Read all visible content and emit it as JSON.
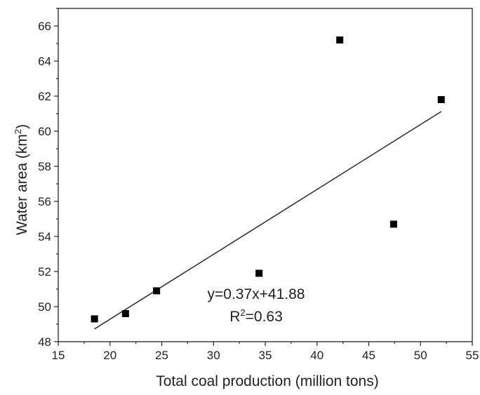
{
  "chart_data": {
    "type": "scatter",
    "title": "",
    "xlabel": "Total coal production (million tons)",
    "ylabel_main": "Water area (km",
    "ylabel_sup": "2",
    "ylabel_close": ")",
    "xlim": [
      15,
      55
    ],
    "ylim": [
      48,
      67
    ],
    "xticks": [
      15,
      20,
      25,
      30,
      35,
      40,
      45,
      50,
      55
    ],
    "yticks": [
      48,
      50,
      52,
      54,
      56,
      58,
      60,
      62,
      64,
      66
    ],
    "x": [
      18.5,
      21.5,
      24.5,
      34.4,
      42.2,
      47.4,
      52.0
    ],
    "y": [
      49.3,
      49.6,
      50.9,
      51.9,
      65.2,
      54.7,
      61.8
    ],
    "fit": {
      "slope": 0.37,
      "intercept": 41.88,
      "x_range": [
        18.5,
        52.0
      ]
    },
    "equation_text": "y=0.37x+41.88",
    "r2_prefix": "R",
    "r2_sup": "2",
    "r2_value": "=0.63",
    "grid": false,
    "marker_color": "#000000"
  }
}
